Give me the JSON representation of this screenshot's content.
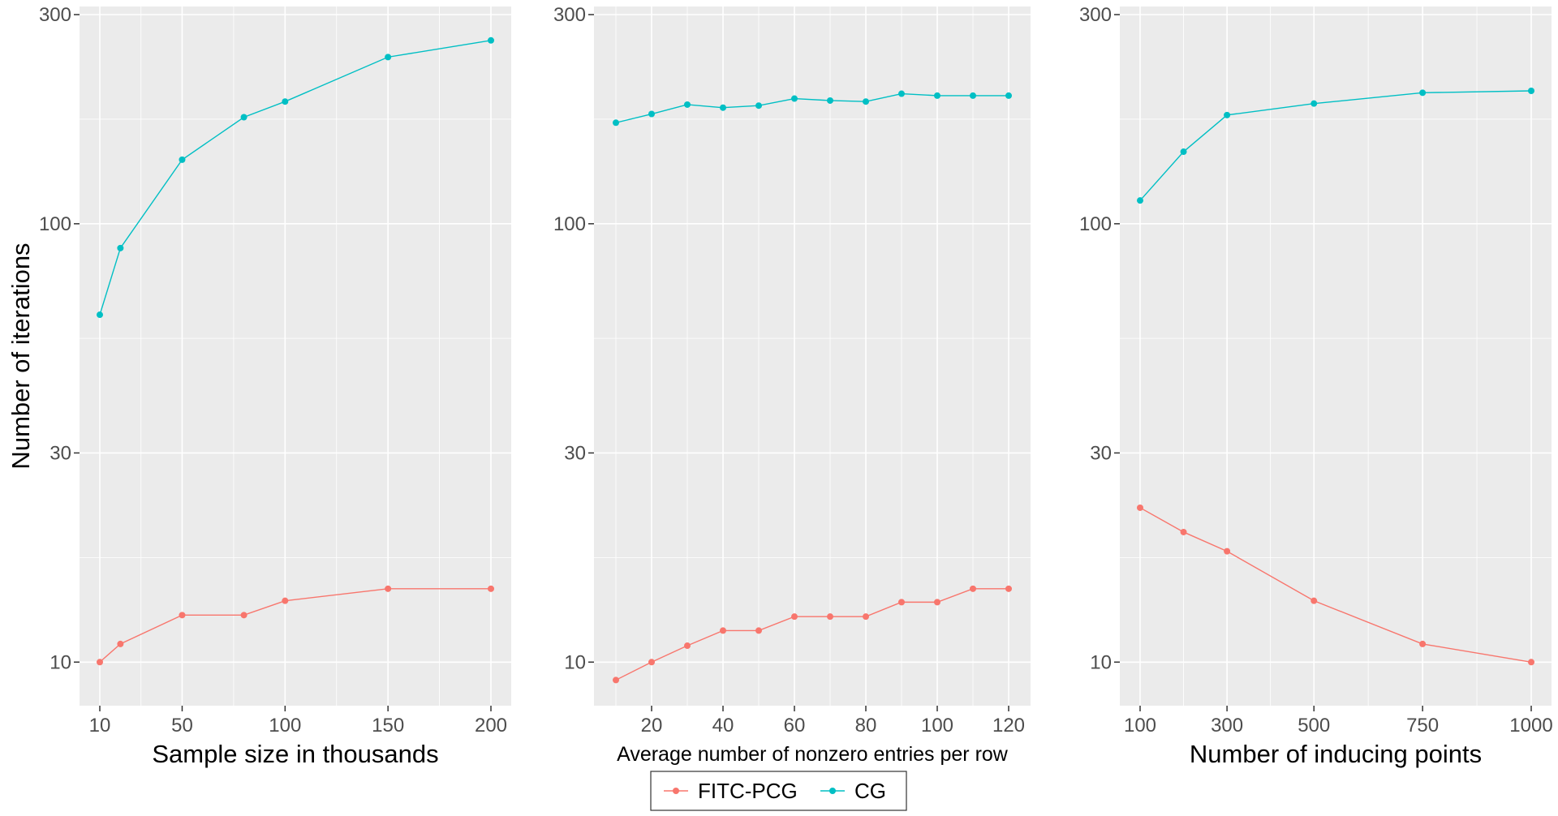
{
  "colors": {
    "FITC-PCG": "#F8766D",
    "CG": "#00BFC4"
  },
  "legend": {
    "placement": "bottom",
    "entries": [
      {
        "name": "FITC-PCG",
        "color": "#F8766D"
      },
      {
        "name": "CG",
        "color": "#00BFC4"
      }
    ]
  },
  "chart_data": [
    {
      "type": "line",
      "y_scale": "log",
      "ylabel": "Number of iterations",
      "xlabel": "Sample size in thousands",
      "xlim": [
        10,
        200
      ],
      "ylim": [
        8.3,
        300
      ],
      "x_ticks": [
        10,
        50,
        100,
        150,
        200
      ],
      "y_ticks": [
        10,
        30,
        100,
        300
      ],
      "grid": true,
      "series": [
        {
          "name": "FITC-PCG",
          "x": [
            10,
            20,
            50,
            80,
            100,
            150,
            200
          ],
          "y": [
            10,
            11,
            12.8,
            12.8,
            13.8,
            14.7,
            14.7
          ]
        },
        {
          "name": "CG",
          "x": [
            10,
            20,
            50,
            80,
            100,
            150,
            200
          ],
          "y": [
            62,
            88,
            140,
            175,
            190,
            240,
            262
          ]
        }
      ]
    },
    {
      "type": "line",
      "y_scale": "log",
      "ylabel": "",
      "xlabel": "Average number of nonzero entries per row",
      "xlim": [
        10,
        120
      ],
      "ylim": [
        8.3,
        300
      ],
      "x_ticks": [
        20,
        40,
        60,
        80,
        100,
        120
      ],
      "y_ticks": [
        10,
        30,
        100,
        300
      ],
      "grid": true,
      "series": [
        {
          "name": "FITC-PCG",
          "x": [
            10,
            20,
            30,
            40,
            50,
            60,
            70,
            80,
            90,
            100,
            110,
            120
          ],
          "y": [
            9.1,
            10,
            10.9,
            11.8,
            11.8,
            12.7,
            12.7,
            12.7,
            13.7,
            13.7,
            14.7,
            14.7
          ]
        },
        {
          "name": "CG",
          "x": [
            10,
            20,
            30,
            40,
            50,
            60,
            70,
            80,
            90,
            100,
            110,
            120
          ],
          "y": [
            170,
            178,
            187,
            184,
            186,
            193,
            191,
            190,
            198,
            196,
            196,
            196
          ]
        }
      ]
    },
    {
      "type": "line",
      "y_scale": "log",
      "ylabel": "",
      "xlabel": "Number of inducing points",
      "xlim": [
        100,
        1000
      ],
      "ylim": [
        8.3,
        300
      ],
      "x_ticks": [
        100,
        300,
        500,
        750,
        1000
      ],
      "y_ticks": [
        10,
        30,
        100,
        300
      ],
      "grid": true,
      "series": [
        {
          "name": "FITC-PCG",
          "x": [
            100,
            200,
            300,
            500,
            750,
            1000
          ],
          "y": [
            22.5,
            19.8,
            17.9,
            13.8,
            11,
            10
          ]
        },
        {
          "name": "CG",
          "x": [
            100,
            200,
            300,
            500,
            750,
            1000
          ],
          "y": [
            113,
            146,
            177,
            188,
            199,
            201
          ]
        }
      ]
    }
  ]
}
